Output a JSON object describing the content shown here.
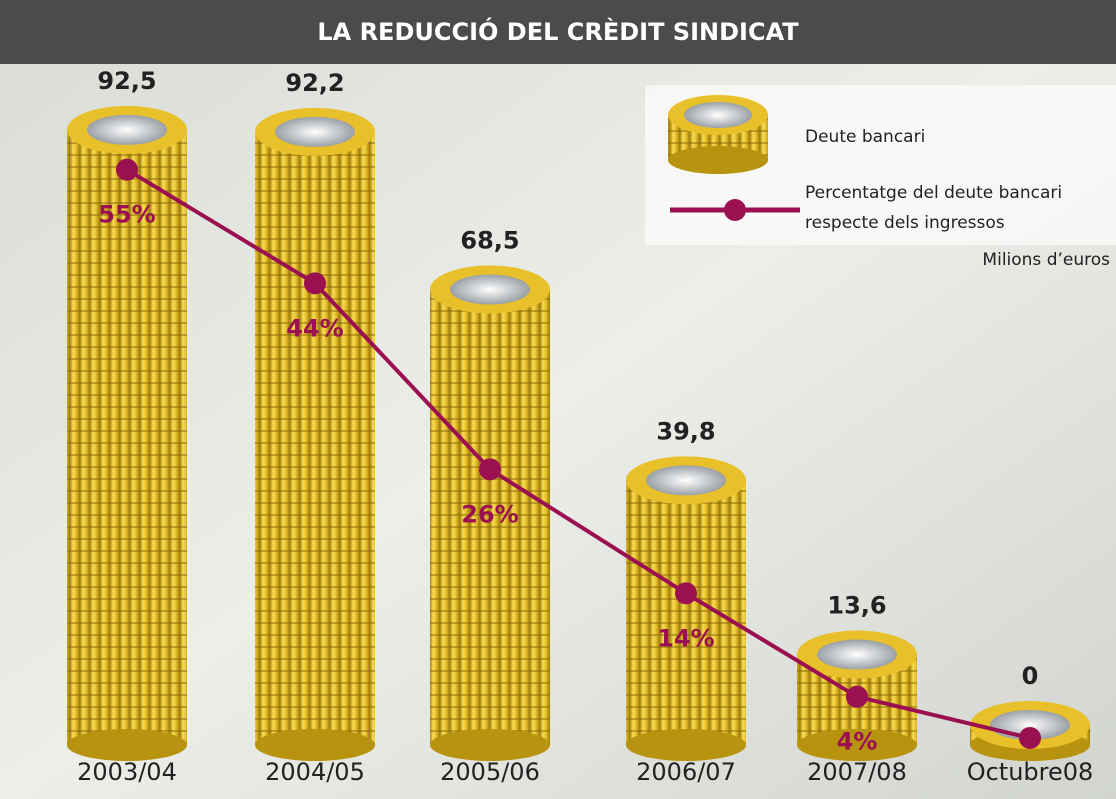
{
  "chart_data": {
    "type": "bar",
    "title": "LA REDUCCIÓ DEL CRÈDIT SINDICAT",
    "unit_label": "Milions d’euros",
    "categories": [
      "2003/04",
      "2004/05",
      "2005/06",
      "2006/07",
      "2007/08",
      "Octubre08"
    ],
    "ylim": [
      0,
      100
    ],
    "y2lim": [
      0,
      60
    ],
    "series": [
      {
        "name": "Deute bancari",
        "type": "bar",
        "color": "#e8c02a",
        "values": [
          92.5,
          92.2,
          68.5,
          39.8,
          13.6,
          0
        ],
        "value_labels": [
          "92,5",
          "92,2",
          "68,5",
          "39,8",
          "13,6",
          "0"
        ]
      },
      {
        "name": "Percentatge del deute bancari respecte dels ingressos",
        "type": "line",
        "axis": "y2",
        "color": "#9b1050",
        "values": [
          55,
          44,
          26,
          14,
          4,
          0
        ],
        "value_labels": [
          "55%",
          "44%",
          "26%",
          "14%",
          "4%",
          null
        ]
      }
    ]
  }
}
